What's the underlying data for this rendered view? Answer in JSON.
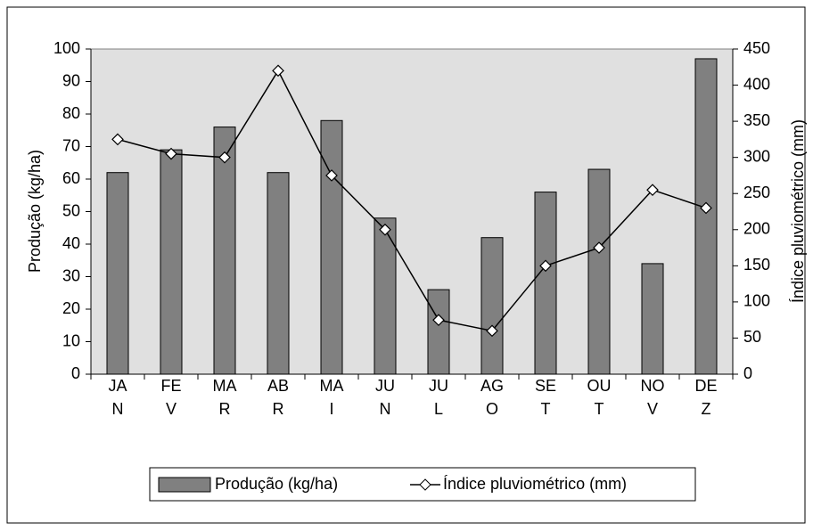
{
  "chart_data": {
    "type": "bar",
    "categories": [
      "JAN",
      "FEV",
      "MAR",
      "ABR",
      "MAI",
      "JUN",
      "JUL",
      "AGO",
      "SET",
      "OUT",
      "NOV",
      "DEZ"
    ],
    "series": [
      {
        "name": "Produção (kg/ha)",
        "type": "bar",
        "color": "#808080",
        "values": [
          62,
          69,
          76,
          62,
          78,
          48,
          26,
          42,
          56,
          63,
          34,
          97
        ]
      },
      {
        "name": "Índice pluviométrico (mm)",
        "type": "line",
        "axis": "y2",
        "color": "#000000",
        "values": [
          325,
          305,
          300,
          420,
          275,
          200,
          75,
          60,
          150,
          175,
          255,
          230
        ]
      }
    ],
    "ylabel": "Produção (kg/ha)",
    "y2label": "Índice pluviométrico (mm)",
    "ylim": [
      0,
      100
    ],
    "yticks": [
      0,
      10,
      20,
      30,
      40,
      50,
      60,
      70,
      80,
      90,
      100
    ],
    "y2lim": [
      0,
      450
    ],
    "y2ticks": [
      0,
      50,
      100,
      150,
      200,
      250,
      300,
      350,
      400,
      450
    ],
    "plot_background": "#e0e0e0",
    "legend": "bottom"
  }
}
